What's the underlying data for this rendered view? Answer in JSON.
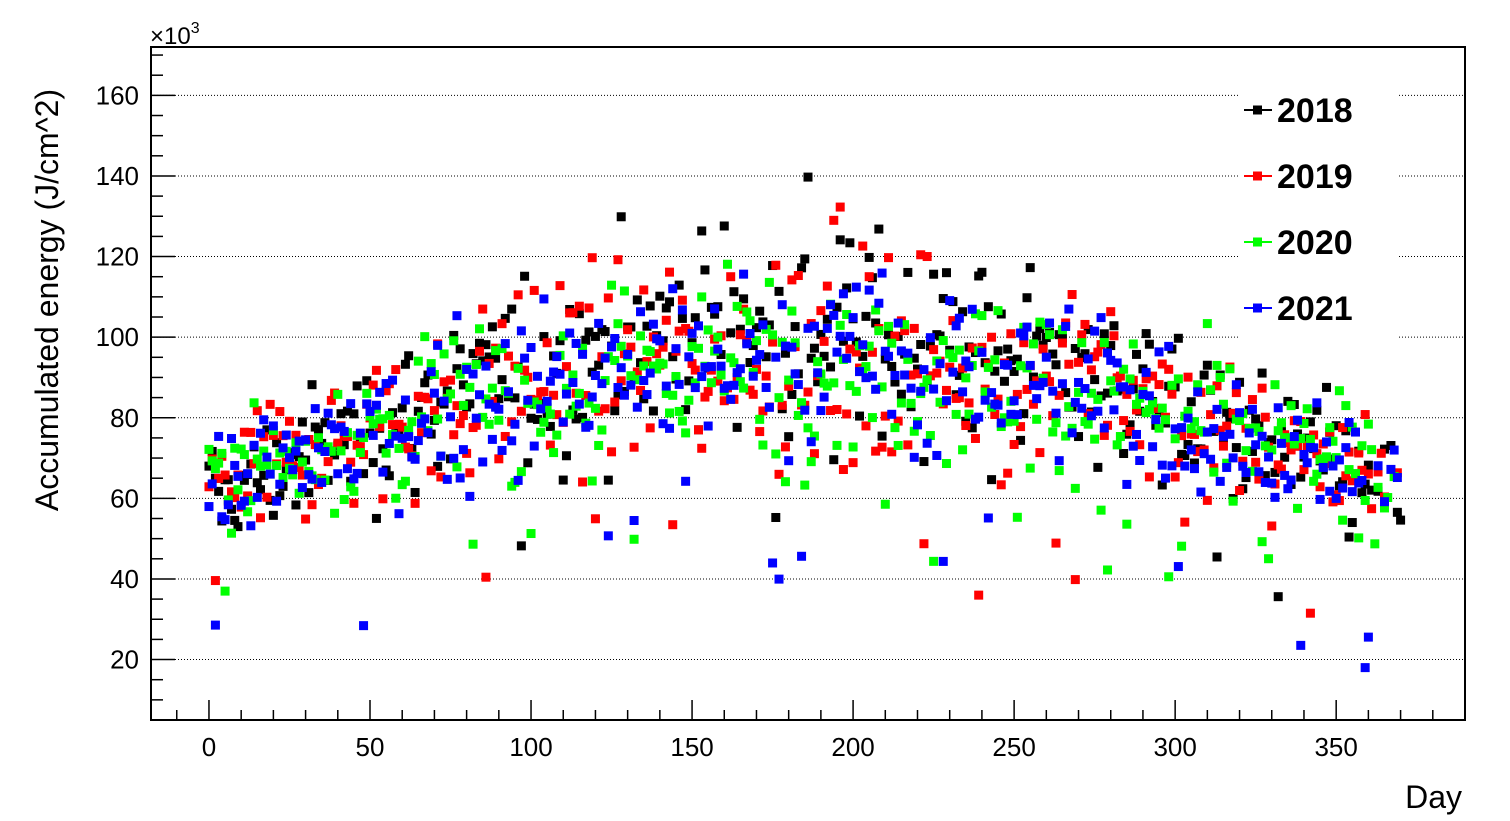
{
  "chart_data": {
    "type": "scatter",
    "xlabel": "Day",
    "ylabel": "Accumulated energy (J/cm^2)",
    "y_multiplier_label": "×10",
    "y_multiplier_exp": "3",
    "xlim": [
      -18,
      390
    ],
    "ylim": [
      5,
      172
    ],
    "x_ticks": [
      0,
      50,
      100,
      150,
      200,
      250,
      300,
      350
    ],
    "y_ticks": [
      20,
      40,
      60,
      80,
      100,
      120,
      140,
      160
    ],
    "grid": "horizontal-dotted",
    "legend_position": "top-right",
    "series": [
      {
        "name": "2018",
        "color": "#000000",
        "center": 82,
        "amp": 13,
        "spread": 19
      },
      {
        "name": "2019",
        "color": "#ff0000",
        "center": 81,
        "amp": 10,
        "spread": 20
      },
      {
        "name": "2020",
        "color": "#00ff00",
        "center": 80,
        "amp": 9,
        "spread": 18
      },
      {
        "name": "2021",
        "color": "#0000ff",
        "center": 79,
        "amp": 10,
        "spread": 17
      }
    ],
    "day_range": [
      0,
      370
    ]
  }
}
